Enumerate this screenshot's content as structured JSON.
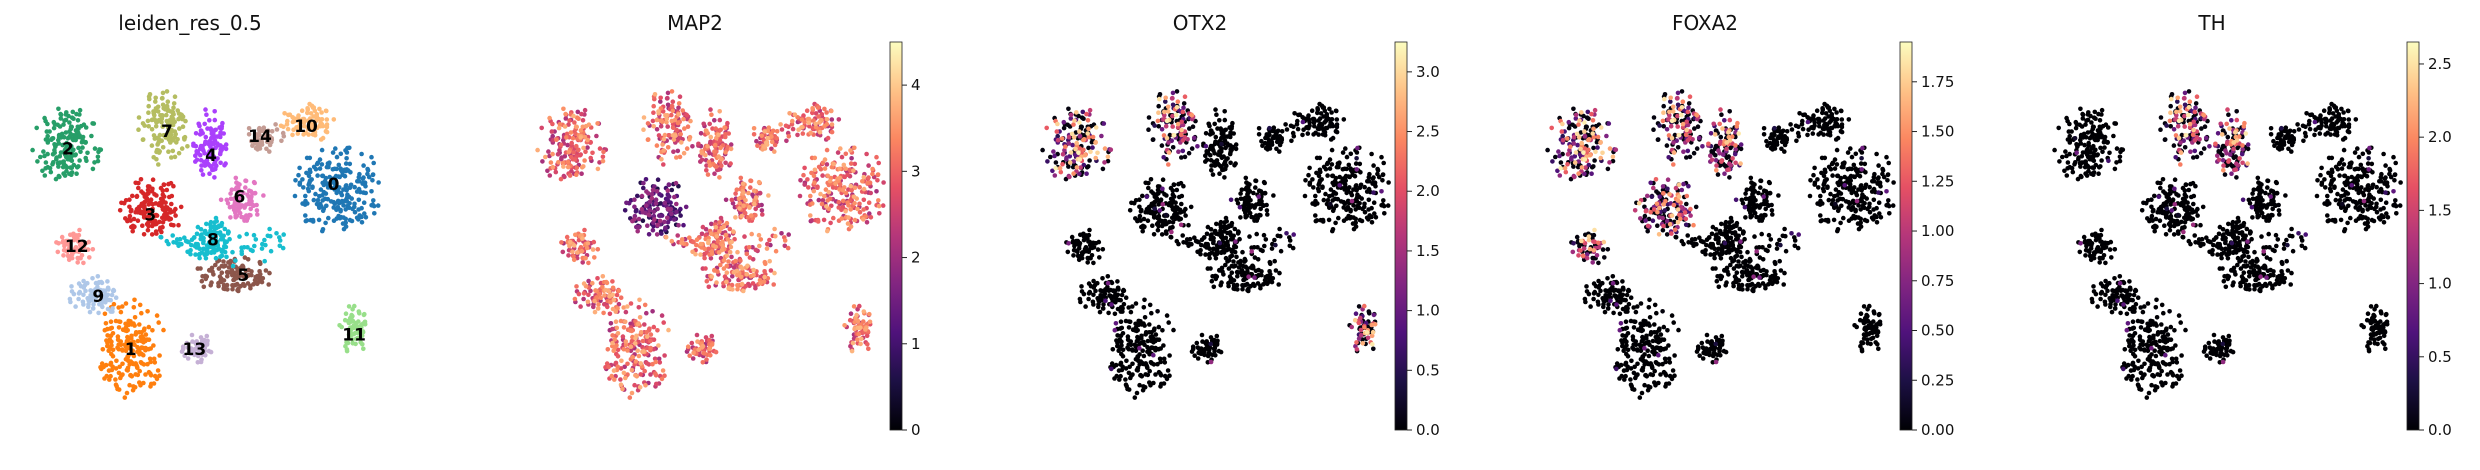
{
  "colors": {
    "magma": [
      "#000004",
      "#1c1044",
      "#4f127b",
      "#812581",
      "#b5367a",
      "#e55064",
      "#fb8761",
      "#fec287",
      "#fcfdbf"
    ],
    "clusters": [
      "#1f77b4",
      "#ff7f0e",
      "#279e68",
      "#d62728",
      "#aa40fc",
      "#8c564b",
      "#e377c2",
      "#b5bd61",
      "#17becf",
      "#aec7e8",
      "#ffbb78",
      "#98df8a",
      "#ff9896",
      "#c5b0d5",
      "#c49c94"
    ]
  },
  "chart_data": [
    {
      "type": "scatter",
      "title": "leiden_res_0.5",
      "legend": "on data",
      "clusters": [
        {
          "label": "0"
        },
        {
          "label": "1"
        },
        {
          "label": "2"
        },
        {
          "label": "3"
        },
        {
          "label": "4"
        },
        {
          "label": "5"
        },
        {
          "label": "6"
        },
        {
          "label": "7"
        },
        {
          "label": "8"
        },
        {
          "label": "9"
        },
        {
          "label": "10"
        },
        {
          "label": "11"
        },
        {
          "label": "12"
        },
        {
          "label": "13"
        },
        {
          "label": "14"
        }
      ]
    },
    {
      "type": "scatter",
      "title": "MAP2",
      "colorbar": {
        "min": 0,
        "max": 4.5,
        "ticks": [
          "0",
          "1",
          "2",
          "3",
          "4"
        ],
        "tick_values": [
          0,
          1,
          2,
          3,
          4
        ]
      },
      "expression": "high across most cells, low in cluster 3 region",
      "high_clusters": [
        "0",
        "1",
        "2",
        "4",
        "5",
        "6",
        "7",
        "8",
        "9",
        "10",
        "11",
        "12",
        "13",
        "14"
      ]
    },
    {
      "type": "scatter",
      "title": "OTX2",
      "colorbar": {
        "min": 0,
        "max": 3.25,
        "ticks": [
          "0.0",
          "0.5",
          "1.0",
          "1.5",
          "2.0",
          "2.5",
          "3.0"
        ],
        "tick_values": [
          0,
          0.5,
          1,
          1.5,
          2,
          2.5,
          3
        ]
      },
      "expression": "expressed in clusters 2, 7, 11",
      "high_clusters": [
        "2",
        "7",
        "11"
      ]
    },
    {
      "type": "scatter",
      "title": "FOXA2",
      "colorbar": {
        "min": 0,
        "max": 1.95,
        "ticks": [
          "0.00",
          "0.25",
          "0.50",
          "0.75",
          "1.00",
          "1.25",
          "1.50",
          "1.75"
        ],
        "tick_values": [
          0,
          0.25,
          0.5,
          0.75,
          1,
          1.25,
          1.5,
          1.75
        ]
      },
      "expression": "expressed in clusters 7, 4, 2, 3, 12",
      "high_clusters": [
        "7",
        "4",
        "2",
        "3",
        "12"
      ]
    },
    {
      "type": "scatter",
      "title": "TH",
      "colorbar": {
        "min": 0,
        "max": 2.65,
        "ticks": [
          "0.0",
          "0.5",
          "1.0",
          "1.5",
          "2.0",
          "2.5"
        ],
        "tick_values": [
          0,
          0.5,
          1,
          1.5,
          2,
          2.5
        ]
      },
      "expression": "expressed in cluster 7 and top of cluster 4",
      "high_clusters": [
        "7",
        "4"
      ]
    }
  ]
}
